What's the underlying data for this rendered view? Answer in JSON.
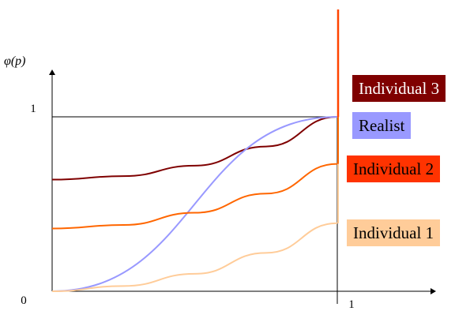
{
  "chart_data": {
    "type": "line",
    "ylabel": "φ(p)",
    "xlabel": "",
    "xlim": [
      0,
      1
    ],
    "ylim": [
      0,
      1
    ],
    "x_ticks": [
      {
        "value": 0,
        "label": "0"
      },
      {
        "value": 1,
        "label": "1"
      }
    ],
    "y_ticks": [
      {
        "value": 1,
        "label": "1"
      }
    ],
    "series": [
      {
        "name": "Individual 3",
        "color": "#7f0000",
        "x": [
          0,
          0.25,
          0.5,
          0.75,
          1
        ],
        "y": [
          0.64,
          0.66,
          0.72,
          0.83,
          1
        ]
      },
      {
        "name": "Realist",
        "color": "#9999ff",
        "x": [
          0,
          1
        ],
        "y": [
          0,
          1
        ]
      },
      {
        "name": "Individual 2",
        "color": "#ff6600",
        "x": [
          0,
          0.25,
          0.5,
          0.75,
          1
        ],
        "y": [
          0.36,
          0.38,
          0.45,
          0.56,
          0.73
        ]
      },
      {
        "name": "Individual 1",
        "color": "#ffcc99",
        "x": [
          0,
          0.25,
          0.5,
          0.75,
          1
        ],
        "y": [
          0,
          0.03,
          0.1,
          0.22,
          0.39
        ]
      }
    ],
    "legend": [
      {
        "label": "Individual 3",
        "bg": "#7f0000",
        "fg": "#ffffff"
      },
      {
        "label": "Realist",
        "bg": "#9999ff",
        "fg": "#000000"
      },
      {
        "label": "Individual 2",
        "bg": "#ff3300",
        "fg": "#000000"
      },
      {
        "label": "Individual 1",
        "bg": "#ffcc99",
        "fg": "#000000"
      }
    ],
    "legend_position": "right",
    "grid": false
  }
}
